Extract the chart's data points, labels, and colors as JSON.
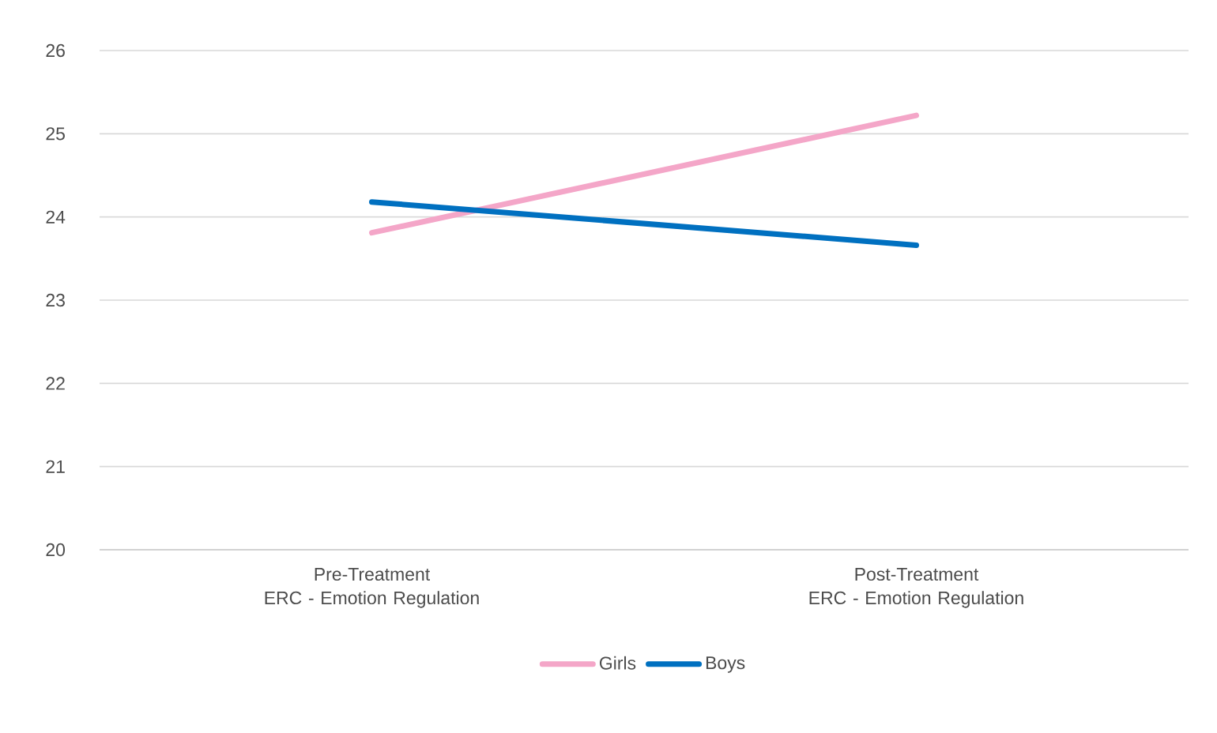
{
  "chart_data": {
    "type": "line",
    "categories": [
      "Pre-Treatment ERC - Emotion Regulation",
      "Post-Treatment ERC - Emotion Regulation"
    ],
    "series": [
      {
        "name": "Girls",
        "color": "#f4a6c8",
        "values": [
          23.81,
          25.22
        ]
      },
      {
        "name": "Boys",
        "color": "#0070c0",
        "values": [
          24.18,
          23.66
        ]
      }
    ],
    "ylim": [
      20,
      26
    ],
    "yticks": [
      20,
      21,
      22,
      23,
      24,
      25,
      26
    ],
    "grid": "y",
    "legend": "bottom",
    "marker": "none",
    "line_style": "solid"
  }
}
